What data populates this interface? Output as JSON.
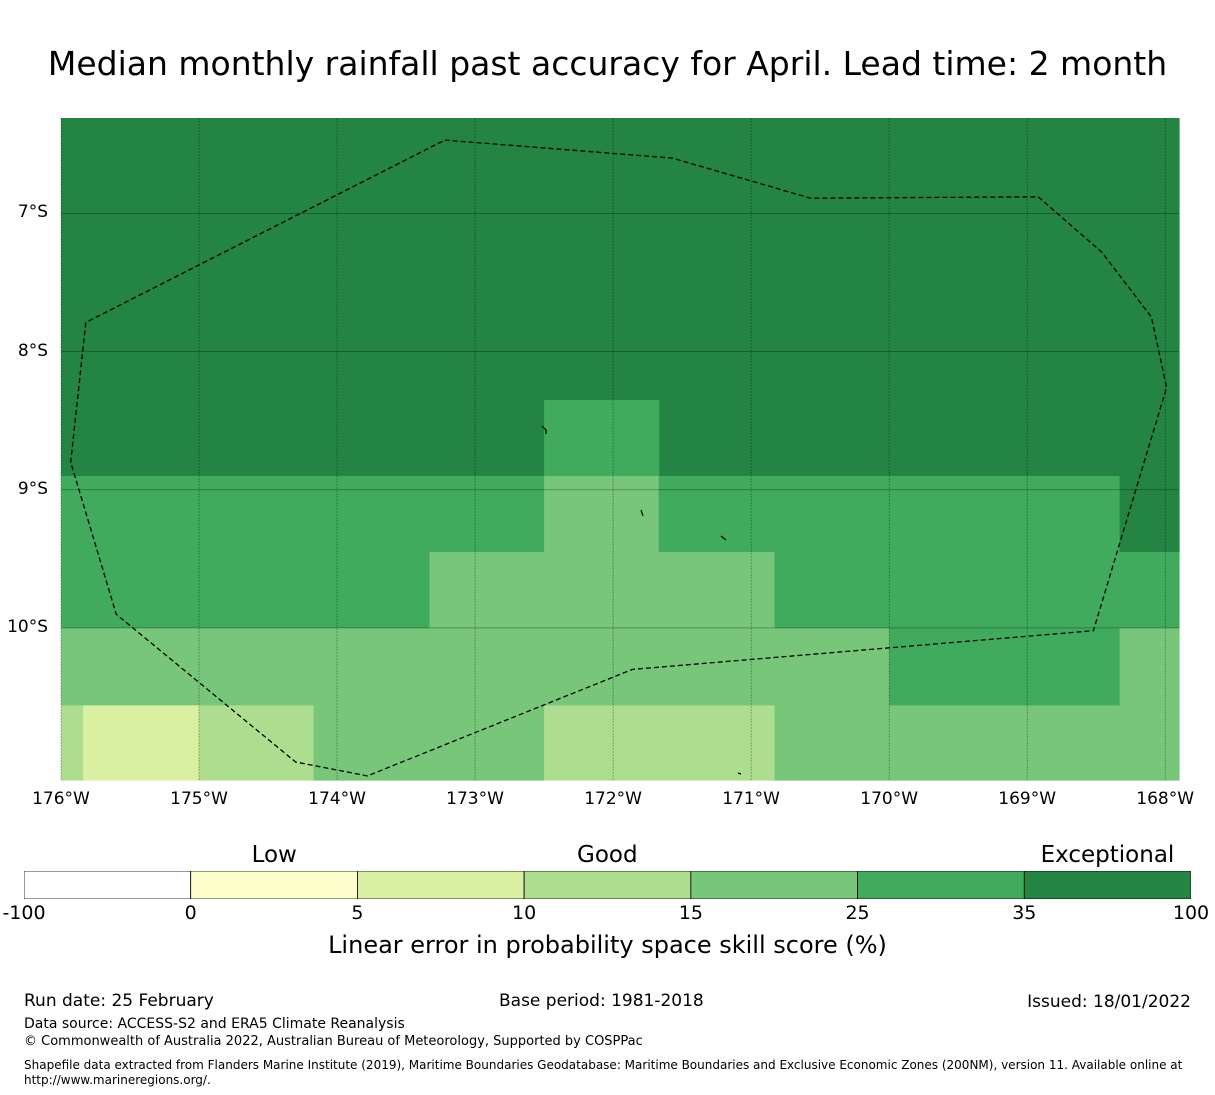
{
  "title": "Median monthly rainfall past accuracy for April. Lead time: 2 month",
  "map": {
    "lat_labels": [
      "7°S",
      "8°S",
      "9°S",
      "10°S"
    ],
    "lon_labels": [
      "176°W",
      "175°W",
      "174°W",
      "173°W",
      "172°W",
      "171°W",
      "170°W",
      "169°W",
      "168°W"
    ],
    "lon_range_deg": [
      -176,
      -167.9
    ],
    "lat_range_deg": [
      -6.31,
      -11.1
    ],
    "skill_cells_lon_lat": [
      {
        "lon": [
          -176,
          -167.9
        ],
        "lat": [
          -6.31,
          -8.9
        ],
        "category": "35-100"
      },
      {
        "lon": [
          -176,
          -172.5
        ],
        "lat": [
          -8.9,
          -9.45
        ],
        "category": "25-35"
      },
      {
        "lon": [
          -172.5,
          -171.67
        ],
        "lat": [
          -8.35,
          -8.9
        ],
        "category": "25-35"
      },
      {
        "lon": [
          -172.5,
          -171.67
        ],
        "lat": [
          -8.9,
          -9.45
        ],
        "category": "15-25"
      },
      {
        "lon": [
          -171.67,
          -168.33
        ],
        "lat": [
          -8.9,
          -9.45
        ],
        "category": "25-35"
      },
      {
        "lon": [
          -168.33,
          -167.9
        ],
        "lat": [
          -8.9,
          -9.45
        ],
        "category": "35-100"
      },
      {
        "lon": [
          -176,
          -173.33
        ],
        "lat": [
          -9.45,
          -10.0
        ],
        "category": "25-35"
      },
      {
        "lon": [
          -173.33,
          -170.83
        ],
        "lat": [
          -9.45,
          -10.0
        ],
        "category": "15-25"
      },
      {
        "lon": [
          -170.83,
          -167.9
        ],
        "lat": [
          -9.45,
          -10.0
        ],
        "category": "25-35"
      },
      {
        "lon": [
          -176,
          -170.0
        ],
        "lat": [
          -10.0,
          -10.56
        ],
        "category": "15-25"
      },
      {
        "lon": [
          -170.0,
          -168.33
        ],
        "lat": [
          -10.0,
          -10.56
        ],
        "category": "25-35"
      },
      {
        "lon": [
          -168.33,
          -167.9
        ],
        "lat": [
          -10.0,
          -10.56
        ],
        "category": "15-25"
      },
      {
        "lon": [
          -176,
          -175.84
        ],
        "lat": [
          -10.56,
          -11.1
        ],
        "category": "10-15"
      },
      {
        "lon": [
          -175.84,
          -175.0
        ],
        "lat": [
          -10.56,
          -11.1
        ],
        "category": "5-10"
      },
      {
        "lon": [
          -175.0,
          -174.17
        ],
        "lat": [
          -10.56,
          -11.1
        ],
        "category": "10-15"
      },
      {
        "lon": [
          -174.17,
          -172.5
        ],
        "lat": [
          -10.56,
          -11.1
        ],
        "category": "15-25"
      },
      {
        "lon": [
          -172.5,
          -170.83
        ],
        "lat": [
          -10.56,
          -11.1
        ],
        "category": "10-15"
      },
      {
        "lon": [
          -170.83,
          -167.9
        ],
        "lat": [
          -10.56,
          -11.1
        ],
        "category": "15-25"
      }
    ],
    "eez_boundary_lon_lat": [
      [
        -173.22,
        -6.47
      ],
      [
        -171.57,
        -6.6
      ],
      [
        -170.57,
        -6.89
      ],
      [
        -168.92,
        -6.88
      ],
      [
        -168.46,
        -7.28
      ],
      [
        -168.1,
        -7.75
      ],
      [
        -167.99,
        -8.26
      ],
      [
        -168.52,
        -10.02
      ],
      [
        -171.86,
        -10.3
      ],
      [
        -173.78,
        -11.07
      ],
      [
        -174.3,
        -10.97
      ],
      [
        -175.6,
        -9.9
      ],
      [
        -175.93,
        -8.8
      ],
      [
        -175.82,
        -7.79
      ],
      [
        -173.22,
        -6.47
      ]
    ]
  },
  "legend": {
    "categories": [
      {
        "label": "Low",
        "at_value": "0-5"
      },
      {
        "label": "Good",
        "at_value": "10-15"
      },
      {
        "label": "Exceptional",
        "at_value": "35-100"
      }
    ],
    "bins": [
      {
        "range": "-100-0",
        "color": "#ffffff"
      },
      {
        "range": "0-5",
        "color": "#ffffcc"
      },
      {
        "range": "5-10",
        "color": "#d9f0a3"
      },
      {
        "range": "10-15",
        "color": "#addd8e"
      },
      {
        "range": "15-25",
        "color": "#78c679"
      },
      {
        "range": "25-35",
        "color": "#41ab5d"
      },
      {
        "range": "35-100",
        "color": "#238443"
      }
    ],
    "ticks": [
      "-100",
      "0",
      "5",
      "10",
      "15",
      "25",
      "35",
      "100"
    ],
    "label": "Linear error in probability space skill score (%)"
  },
  "footer": {
    "run_date": "Run date: 25 February",
    "base_period": "Base period: 1981-2018",
    "issued": "Issued: 18/01/2022",
    "data_source": "Data source: ACCESS-S2 and ERA5 Climate Reanalysis",
    "copyright": "© Commonwealth of Australia 2022, Australian Bureau of Meteorology, Supported by COSPPac",
    "shapefile_1": "Shapefile data extracted from Flanders Marine Institute (2019), Maritime Boundaries Geodatabase: Maritime Boundaries and Exclusive Economic Zones (200NM), version 11. Available online at",
    "shapefile_2": "http://www.marineregions.org/."
  }
}
